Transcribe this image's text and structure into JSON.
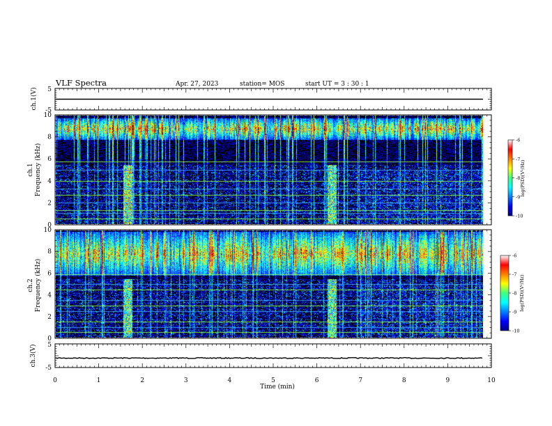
{
  "header": {
    "title": "VLF Spectra",
    "date": "Apr. 27, 2023",
    "station": "station= MOS",
    "start_ut": "start  UT =   3 : 30 : 1"
  },
  "chart_data": [
    {
      "id": "ch1-voltage",
      "type": "line",
      "ylabel": "ch.1(V)",
      "yticks": [
        "5",
        "-5"
      ],
      "ylim": [
        -5,
        5
      ],
      "xlim": [
        0,
        10
      ],
      "baseline": 0.0
    },
    {
      "id": "ch1-spectrogram",
      "type": "heatmap",
      "ylabel": "ch.1\nFrequency (kHz)",
      "ylabel_top": "ch.1",
      "ylabel_bottom": "Frequency (kHz)",
      "yticks": [
        "0",
        "2",
        "4",
        "6",
        "8",
        "10"
      ],
      "ylim": [
        0,
        10
      ],
      "xlim": [
        0,
        9.83
      ],
      "colorbar": {
        "ticks": [
          "-6",
          "-7",
          "-8",
          "-9",
          "-10"
        ],
        "range": [
          -10,
          -6
        ],
        "label": "log(PSD)(V²/Hz)"
      },
      "strong_lines_khz": [
        0.5,
        1.0,
        1.3,
        2.0,
        2.7,
        3.3,
        4.0,
        5.0,
        5.8
      ],
      "band_khz": [
        7.8,
        9.8
      ],
      "bursts_min": [
        1.6,
        1.7,
        6.3,
        6.4
      ]
    },
    {
      "id": "ch2-spectrogram",
      "type": "heatmap",
      "ylabel": "ch.2\nFrequency (kHz)",
      "ylabel_top": "ch.2",
      "ylabel_bottom": "Frequency (kHz)",
      "yticks": [
        "0",
        "2",
        "4",
        "6",
        "8",
        "10"
      ],
      "ylim": [
        0,
        10
      ],
      "xlim": [
        0,
        9.83
      ],
      "colorbar": {
        "ticks": [
          "-6",
          "-7",
          "-8",
          "-9",
          "-10"
        ],
        "range": [
          -10,
          -6
        ],
        "label": "log(PSD)(V²/Hz)"
      },
      "strong_lines_khz": [
        0.5,
        1.0,
        1.5,
        2.5,
        3.0,
        3.5,
        4.5,
        5.0,
        5.9
      ],
      "band_khz": [
        5.8,
        9.9
      ],
      "bursts_min": [
        1.6,
        1.7,
        6.3,
        6.4
      ]
    },
    {
      "id": "ch3-voltage",
      "type": "line",
      "ylabel": "ch.3(V)",
      "yticks": [
        "5",
        "-5"
      ],
      "ylim": [
        -5,
        5
      ],
      "xlim": [
        0,
        10
      ],
      "baseline": -1.0
    }
  ],
  "x_axis": {
    "label": "Time  (min)",
    "ticks": [
      "0",
      "1",
      "2",
      "3",
      "4",
      "5",
      "6",
      "7",
      "8",
      "9",
      "10"
    ],
    "range": [
      0,
      10
    ]
  },
  "colors": {
    "background": "#000000",
    "line": "#000000"
  }
}
